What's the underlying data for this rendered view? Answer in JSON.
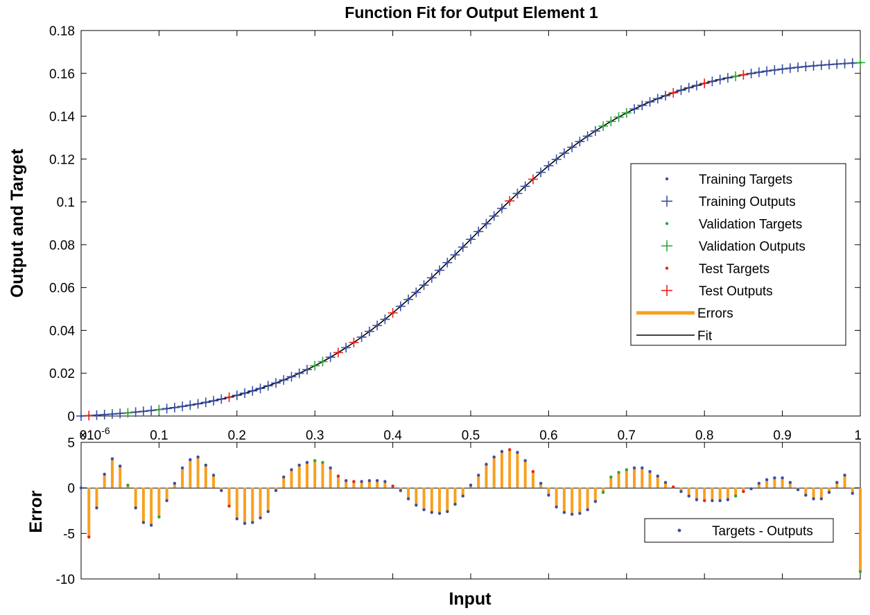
{
  "colors": {
    "training": "#3b4fa3",
    "validation": "#2fa43a",
    "test": "#e8231f",
    "errors": "#f7a020",
    "fit": "#000000",
    "background": "#ffffff"
  },
  "chart_data": [
    {
      "type": "line",
      "title": "Function Fit for Output Element 1",
      "xlabel": "",
      "ylabel": "Output and Target",
      "xlim": [
        0,
        1
      ],
      "ylim": [
        0,
        0.18
      ],
      "x_ticks": [
        "0",
        "0.1",
        "0.2",
        "0.3",
        "0.4",
        "0.5",
        "0.6",
        "0.7",
        "0.8",
        "0.9",
        "1"
      ],
      "x_exponent_label": "×10",
      "x_exponent_power": "-6",
      "y_ticks": [
        "0",
        "0.02",
        "0.04",
        "0.06",
        "0.08",
        "0.1",
        "0.12",
        "0.14",
        "0.16",
        "0.18"
      ],
      "n_samples": 101,
      "fit_model": "logistic",
      "validation_indices": [
        6,
        10,
        30,
        31,
        67,
        68,
        69,
        70,
        84,
        100
      ],
      "test_indices": [
        1,
        19,
        33,
        35,
        40,
        55,
        58,
        76,
        80,
        85
      ],
      "legend": {
        "position": "right",
        "entries": [
          {
            "label": "Training Targets",
            "marker": "dot",
            "color_key": "training"
          },
          {
            "label": "Training Outputs",
            "marker": "plus",
            "color_key": "training"
          },
          {
            "label": "Validation Targets",
            "marker": "dot",
            "color_key": "validation"
          },
          {
            "label": "Validation Outputs",
            "marker": "plus",
            "color_key": "validation"
          },
          {
            "label": "Test Targets",
            "marker": "dot",
            "color_key": "test"
          },
          {
            "label": "Test Outputs",
            "marker": "plus",
            "color_key": "test"
          },
          {
            "label": "Errors",
            "marker": "thick-line",
            "color_key": "errors"
          },
          {
            "label": "Fit",
            "marker": "line",
            "color_key": "fit"
          }
        ]
      }
    },
    {
      "type": "bar",
      "title": "",
      "xlabel": "Input",
      "ylabel": "Error",
      "xlim": [
        0,
        1
      ],
      "ylim": [
        -10,
        5
      ],
      "y_ticks": [
        "5",
        "0",
        "-5",
        "-10"
      ],
      "error_anchors": [
        [
          0,
          0
        ],
        [
          1,
          -5.4
        ],
        [
          2,
          -2.2
        ],
        [
          3,
          1.5
        ],
        [
          4,
          3.2
        ],
        [
          5,
          2.4
        ],
        [
          6,
          0.3
        ],
        [
          7,
          -2.2
        ],
        [
          8,
          -3.8
        ],
        [
          9,
          -4.1
        ],
        [
          10,
          -3.2
        ],
        [
          11,
          -1.4
        ],
        [
          12,
          0.5
        ],
        [
          13,
          2.2
        ],
        [
          14,
          3.1
        ],
        [
          15,
          3.4
        ],
        [
          16,
          2.5
        ],
        [
          17,
          1.4
        ],
        [
          18,
          -0.3
        ],
        [
          19,
          -2.0
        ],
        [
          20,
          -3.4
        ],
        [
          21,
          -3.9
        ],
        [
          22,
          -3.8
        ],
        [
          23,
          -3.3
        ],
        [
          24,
          -2.6
        ],
        [
          25,
          -0.3
        ],
        [
          26,
          1.2
        ],
        [
          27,
          2.0
        ],
        [
          28,
          2.5
        ],
        [
          29,
          2.8
        ],
        [
          30,
          3.0
        ],
        [
          31,
          2.8
        ],
        [
          32,
          2.2
        ],
        [
          33,
          1.3
        ],
        [
          34,
          0.8
        ],
        [
          35,
          0.7
        ],
        [
          36,
          0.7
        ],
        [
          37,
          0.8
        ],
        [
          38,
          0.8
        ],
        [
          39,
          0.7
        ],
        [
          40,
          0.2
        ],
        [
          41,
          -0.3
        ],
        [
          42,
          -1.2
        ],
        [
          43,
          -1.9
        ],
        [
          44,
          -2.4
        ],
        [
          45,
          -2.7
        ],
        [
          46,
          -2.8
        ],
        [
          47,
          -2.6
        ],
        [
          48,
          -1.8
        ],
        [
          49,
          -0.9
        ],
        [
          50,
          0.3
        ],
        [
          51,
          1.4
        ],
        [
          52,
          2.6
        ],
        [
          53,
          3.4
        ],
        [
          54,
          4.0
        ],
        [
          55,
          4.2
        ],
        [
          56,
          3.9
        ],
        [
          57,
          3.0
        ],
        [
          58,
          1.8
        ],
        [
          59,
          0.5
        ],
        [
          60,
          -0.8
        ],
        [
          61,
          -2.1
        ],
        [
          62,
          -2.7
        ],
        [
          63,
          -2.9
        ],
        [
          64,
          -2.8
        ],
        [
          65,
          -2.4
        ],
        [
          66,
          -1.5
        ],
        [
          67,
          -0.5
        ],
        [
          68,
          1.2
        ],
        [
          69,
          1.7
        ],
        [
          70,
          2.0
        ],
        [
          71,
          2.2
        ],
        [
          72,
          2.2
        ],
        [
          73,
          1.8
        ],
        [
          74,
          1.3
        ],
        [
          75,
          0.6
        ],
        [
          76,
          0.1
        ],
        [
          77,
          -0.4
        ],
        [
          78,
          -0.9
        ],
        [
          79,
          -1.3
        ],
        [
          80,
          -1.4
        ],
        [
          81,
          -1.4
        ],
        [
          82,
          -1.4
        ],
        [
          83,
          -1.3
        ],
        [
          84,
          -0.9
        ],
        [
          85,
          -0.4
        ],
        [
          86,
          -0.1
        ],
        [
          87,
          0.5
        ],
        [
          88,
          0.9
        ],
        [
          89,
          1.1
        ],
        [
          90,
          1.1
        ],
        [
          91,
          0.6
        ],
        [
          92,
          -0.2
        ],
        [
          93,
          -0.8
        ],
        [
          94,
          -1.2
        ],
        [
          95,
          -1.2
        ],
        [
          96,
          -0.5
        ],
        [
          97,
          0.6
        ],
        [
          98,
          1.4
        ],
        [
          99,
          -0.6
        ],
        [
          100,
          -9.2
        ]
      ],
      "legend": {
        "position": "bottom-right",
        "entries": [
          {
            "label": "Targets - Outputs",
            "marker": "dot",
            "color_key": "training"
          }
        ]
      }
    }
  ]
}
